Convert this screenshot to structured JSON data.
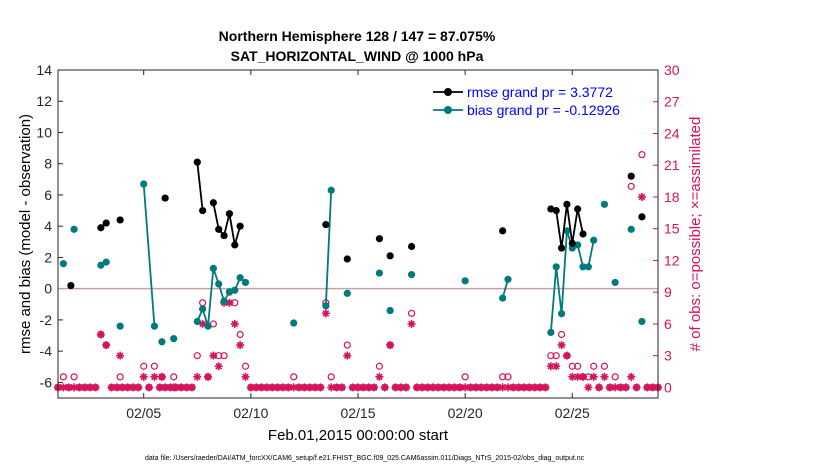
{
  "chart_data": {
    "type": "line",
    "title": "Northern Hemisphere 128 / 147 = 87.075%",
    "subtitle": "SAT_HORIZONTAL_WIND @ 1000 hPa",
    "xlabel": "Feb.01,2015 00:00:00 start",
    "ylabel": "rmse and bias (model - observation)",
    "ylabel_right": "# of obs: o=possible; ×=assimilated",
    "xlim": [
      1,
      29
    ],
    "ylim": [
      -7,
      14
    ],
    "ylim_right": [
      -1,
      30
    ],
    "yticks": [
      -6,
      -4,
      -2,
      0,
      2,
      4,
      6,
      8,
      10,
      12,
      14
    ],
    "yticks_right": [
      0,
      3,
      6,
      9,
      12,
      15,
      18,
      21,
      24,
      27,
      30
    ],
    "xticks": [
      {
        "x": 5,
        "label": "02/05"
      },
      {
        "x": 10,
        "label": "02/10"
      },
      {
        "x": 15,
        "label": "02/15"
      },
      {
        "x": 20,
        "label": "02/20"
      },
      {
        "x": 25,
        "label": "02/25"
      }
    ],
    "legend": [
      "rmse grand pr = 3.3772",
      "bias grand pr = -0.12926"
    ],
    "footnote": "data file: /Users/raeder/DAI/ATM_forcXX/CAM6_setup/f.e21.FHIST_BGC.f09_025.CAM6assim.011/Diags_NTrS_2015-02/obs_diag_output.nc",
    "series": [
      {
        "name": "rmse",
        "color": "#000000",
        "segments": [
          [
            [
              1.6,
              0.2
            ]
          ],
          [
            [
              3.0,
              3.9
            ],
            [
              3.25,
              4.2
            ]
          ],
          [
            [
              3.9,
              4.4
            ]
          ],
          [
            [
              6.0,
              5.8
            ]
          ],
          [
            [
              7.5,
              8.1
            ],
            [
              7.75,
              5.0
            ]
          ],
          [
            [
              8.25,
              5.5
            ],
            [
              8.5,
              3.8
            ],
            [
              8.75,
              3.4
            ],
            [
              9.0,
              4.8
            ],
            [
              9.25,
              2.8
            ],
            [
              9.5,
              4.0
            ]
          ],
          [
            [
              13.5,
              4.1
            ]
          ],
          [
            [
              14.5,
              1.9
            ]
          ],
          [
            [
              16.0,
              3.2
            ]
          ],
          [
            [
              16.5,
              2.1
            ]
          ],
          [
            [
              17.5,
              2.7
            ]
          ],
          [
            [
              21.75,
              3.7
            ]
          ],
          [
            [
              24.0,
              5.1
            ],
            [
              24.25,
              5.0
            ],
            [
              24.5,
              2.6
            ],
            [
              24.75,
              5.4
            ],
            [
              25.0,
              2.9
            ],
            [
              25.25,
              5.1
            ],
            [
              25.5,
              3.5
            ]
          ],
          [
            [
              27.75,
              7.2
            ]
          ],
          [
            [
              28.25,
              4.6
            ]
          ]
        ]
      },
      {
        "name": "bias",
        "color": "#007a7a",
        "segments": [
          [
            [
              1.25,
              1.6
            ]
          ],
          [
            [
              1.75,
              3.8
            ]
          ],
          [
            [
              3.0,
              1.5
            ],
            [
              3.25,
              1.7
            ]
          ],
          [
            [
              3.9,
              -2.4
            ]
          ],
          [
            [
              5.0,
              6.7
            ],
            [
              5.5,
              -2.4
            ]
          ],
          [
            [
              5.85,
              -3.4
            ]
          ],
          [
            [
              6.4,
              -3.2
            ]
          ],
          [
            [
              7.5,
              -2.1
            ],
            [
              7.75,
              -1.3
            ],
            [
              8.0,
              -2.4
            ],
            [
              8.25,
              1.3
            ],
            [
              8.5,
              0.3
            ],
            [
              8.75,
              -0.8
            ],
            [
              9.0,
              -0.2
            ],
            [
              9.25,
              -0.1
            ],
            [
              9.5,
              0.7
            ],
            [
              9.75,
              0.4
            ]
          ],
          [
            [
              12.0,
              -2.2
            ]
          ],
          [
            [
              13.5,
              -1.1
            ],
            [
              13.75,
              6.3
            ]
          ],
          [
            [
              14.5,
              -0.3
            ]
          ],
          [
            [
              16.0,
              1.0
            ]
          ],
          [
            [
              16.5,
              -1.4
            ]
          ],
          [
            [
              17.5,
              0.9
            ]
          ],
          [
            [
              20.0,
              0.5
            ]
          ],
          [
            [
              21.75,
              -0.6
            ],
            [
              22.0,
              0.6
            ]
          ],
          [
            [
              24.0,
              -2.8
            ],
            [
              24.25,
              1.4
            ],
            [
              24.5,
              -1.6
            ],
            [
              24.75,
              3.7
            ],
            [
              25.0,
              2.6
            ],
            [
              25.25,
              2.8
            ],
            [
              25.5,
              1.4
            ],
            [
              25.75,
              1.4
            ],
            [
              26.0,
              3.1
            ]
          ],
          [
            [
              26.5,
              5.4
            ]
          ],
          [
            [
              27.0,
              0.4
            ]
          ],
          [
            [
              27.75,
              3.8
            ]
          ],
          [
            [
              28.25,
              -2.1
            ]
          ]
        ]
      }
    ],
    "obs_possible": [
      [
        1.25,
        1
      ],
      [
        1.75,
        1
      ],
      [
        3.0,
        5
      ],
      [
        3.25,
        4
      ],
      [
        3.9,
        1
      ],
      [
        5.0,
        2
      ],
      [
        5.5,
        2
      ],
      [
        5.85,
        1
      ],
      [
        6.4,
        1
      ],
      [
        7.5,
        3
      ],
      [
        7.75,
        8
      ],
      [
        8.0,
        1
      ],
      [
        8.25,
        6
      ],
      [
        8.5,
        3
      ],
      [
        8.75,
        3
      ],
      [
        9.0,
        9
      ],
      [
        9.25,
        8
      ],
      [
        9.5,
        5
      ],
      [
        9.75,
        2
      ],
      [
        12.0,
        1
      ],
      [
        13.5,
        8
      ],
      [
        13.75,
        1
      ],
      [
        14.5,
        4
      ],
      [
        16.0,
        2
      ],
      [
        16.5,
        4
      ],
      [
        17.5,
        7
      ],
      [
        20.0,
        1
      ],
      [
        21.75,
        1
      ],
      [
        22.0,
        1
      ],
      [
        24.0,
        3
      ],
      [
        24.25,
        3
      ],
      [
        24.5,
        5
      ],
      [
        24.75,
        3
      ],
      [
        25.0,
        2
      ],
      [
        25.25,
        2
      ],
      [
        25.5,
        1
      ],
      [
        25.75,
        1
      ],
      [
        26.0,
        2
      ],
      [
        26.5,
        2
      ],
      [
        27.0,
        1
      ],
      [
        27.75,
        19
      ],
      [
        28.25,
        22
      ]
    ],
    "obs_assimilated": [
      [
        1.25,
        0
      ],
      [
        1.75,
        0
      ],
      [
        3.0,
        5
      ],
      [
        3.25,
        4
      ],
      [
        3.9,
        3
      ],
      [
        5.0,
        1
      ],
      [
        5.5,
        1
      ],
      [
        5.85,
        1
      ],
      [
        6.4,
        0
      ],
      [
        7.5,
        1
      ],
      [
        7.75,
        6
      ],
      [
        8.0,
        1
      ],
      [
        8.25,
        3
      ],
      [
        8.5,
        2
      ],
      [
        8.75,
        8
      ],
      [
        9.0,
        8
      ],
      [
        9.25,
        6
      ],
      [
        9.5,
        4
      ],
      [
        9.75,
        1
      ],
      [
        12.0,
        0
      ],
      [
        13.5,
        7
      ],
      [
        13.75,
        0
      ],
      [
        14.5,
        3
      ],
      [
        16.0,
        1
      ],
      [
        16.5,
        4
      ],
      [
        17.5,
        6
      ],
      [
        20.0,
        0
      ],
      [
        21.75,
        0
      ],
      [
        22.0,
        0
      ],
      [
        24.0,
        2
      ],
      [
        24.25,
        2
      ],
      [
        24.5,
        4
      ],
      [
        24.75,
        3
      ],
      [
        25.0,
        1
      ],
      [
        25.25,
        1
      ],
      [
        25.5,
        1
      ],
      [
        25.75,
        0
      ],
      [
        26.0,
        1
      ],
      [
        26.5,
        1
      ],
      [
        27.0,
        0
      ],
      [
        27.75,
        1
      ],
      [
        28.25,
        18
      ]
    ],
    "obs_zero_days": [
      1,
      2,
      3,
      4,
      5,
      6,
      7,
      8,
      9,
      10,
      11,
      12,
      13,
      14,
      15,
      16,
      17,
      18,
      19,
      20,
      21,
      22,
      23,
      24,
      25,
      26,
      27,
      28,
      29
    ],
    "colors": {
      "rmse": "#000000",
      "bias": "#007a7a",
      "obs": "#d4145a",
      "legend_text": "#0000ff",
      "zero_line": "#c8a0a8"
    }
  }
}
